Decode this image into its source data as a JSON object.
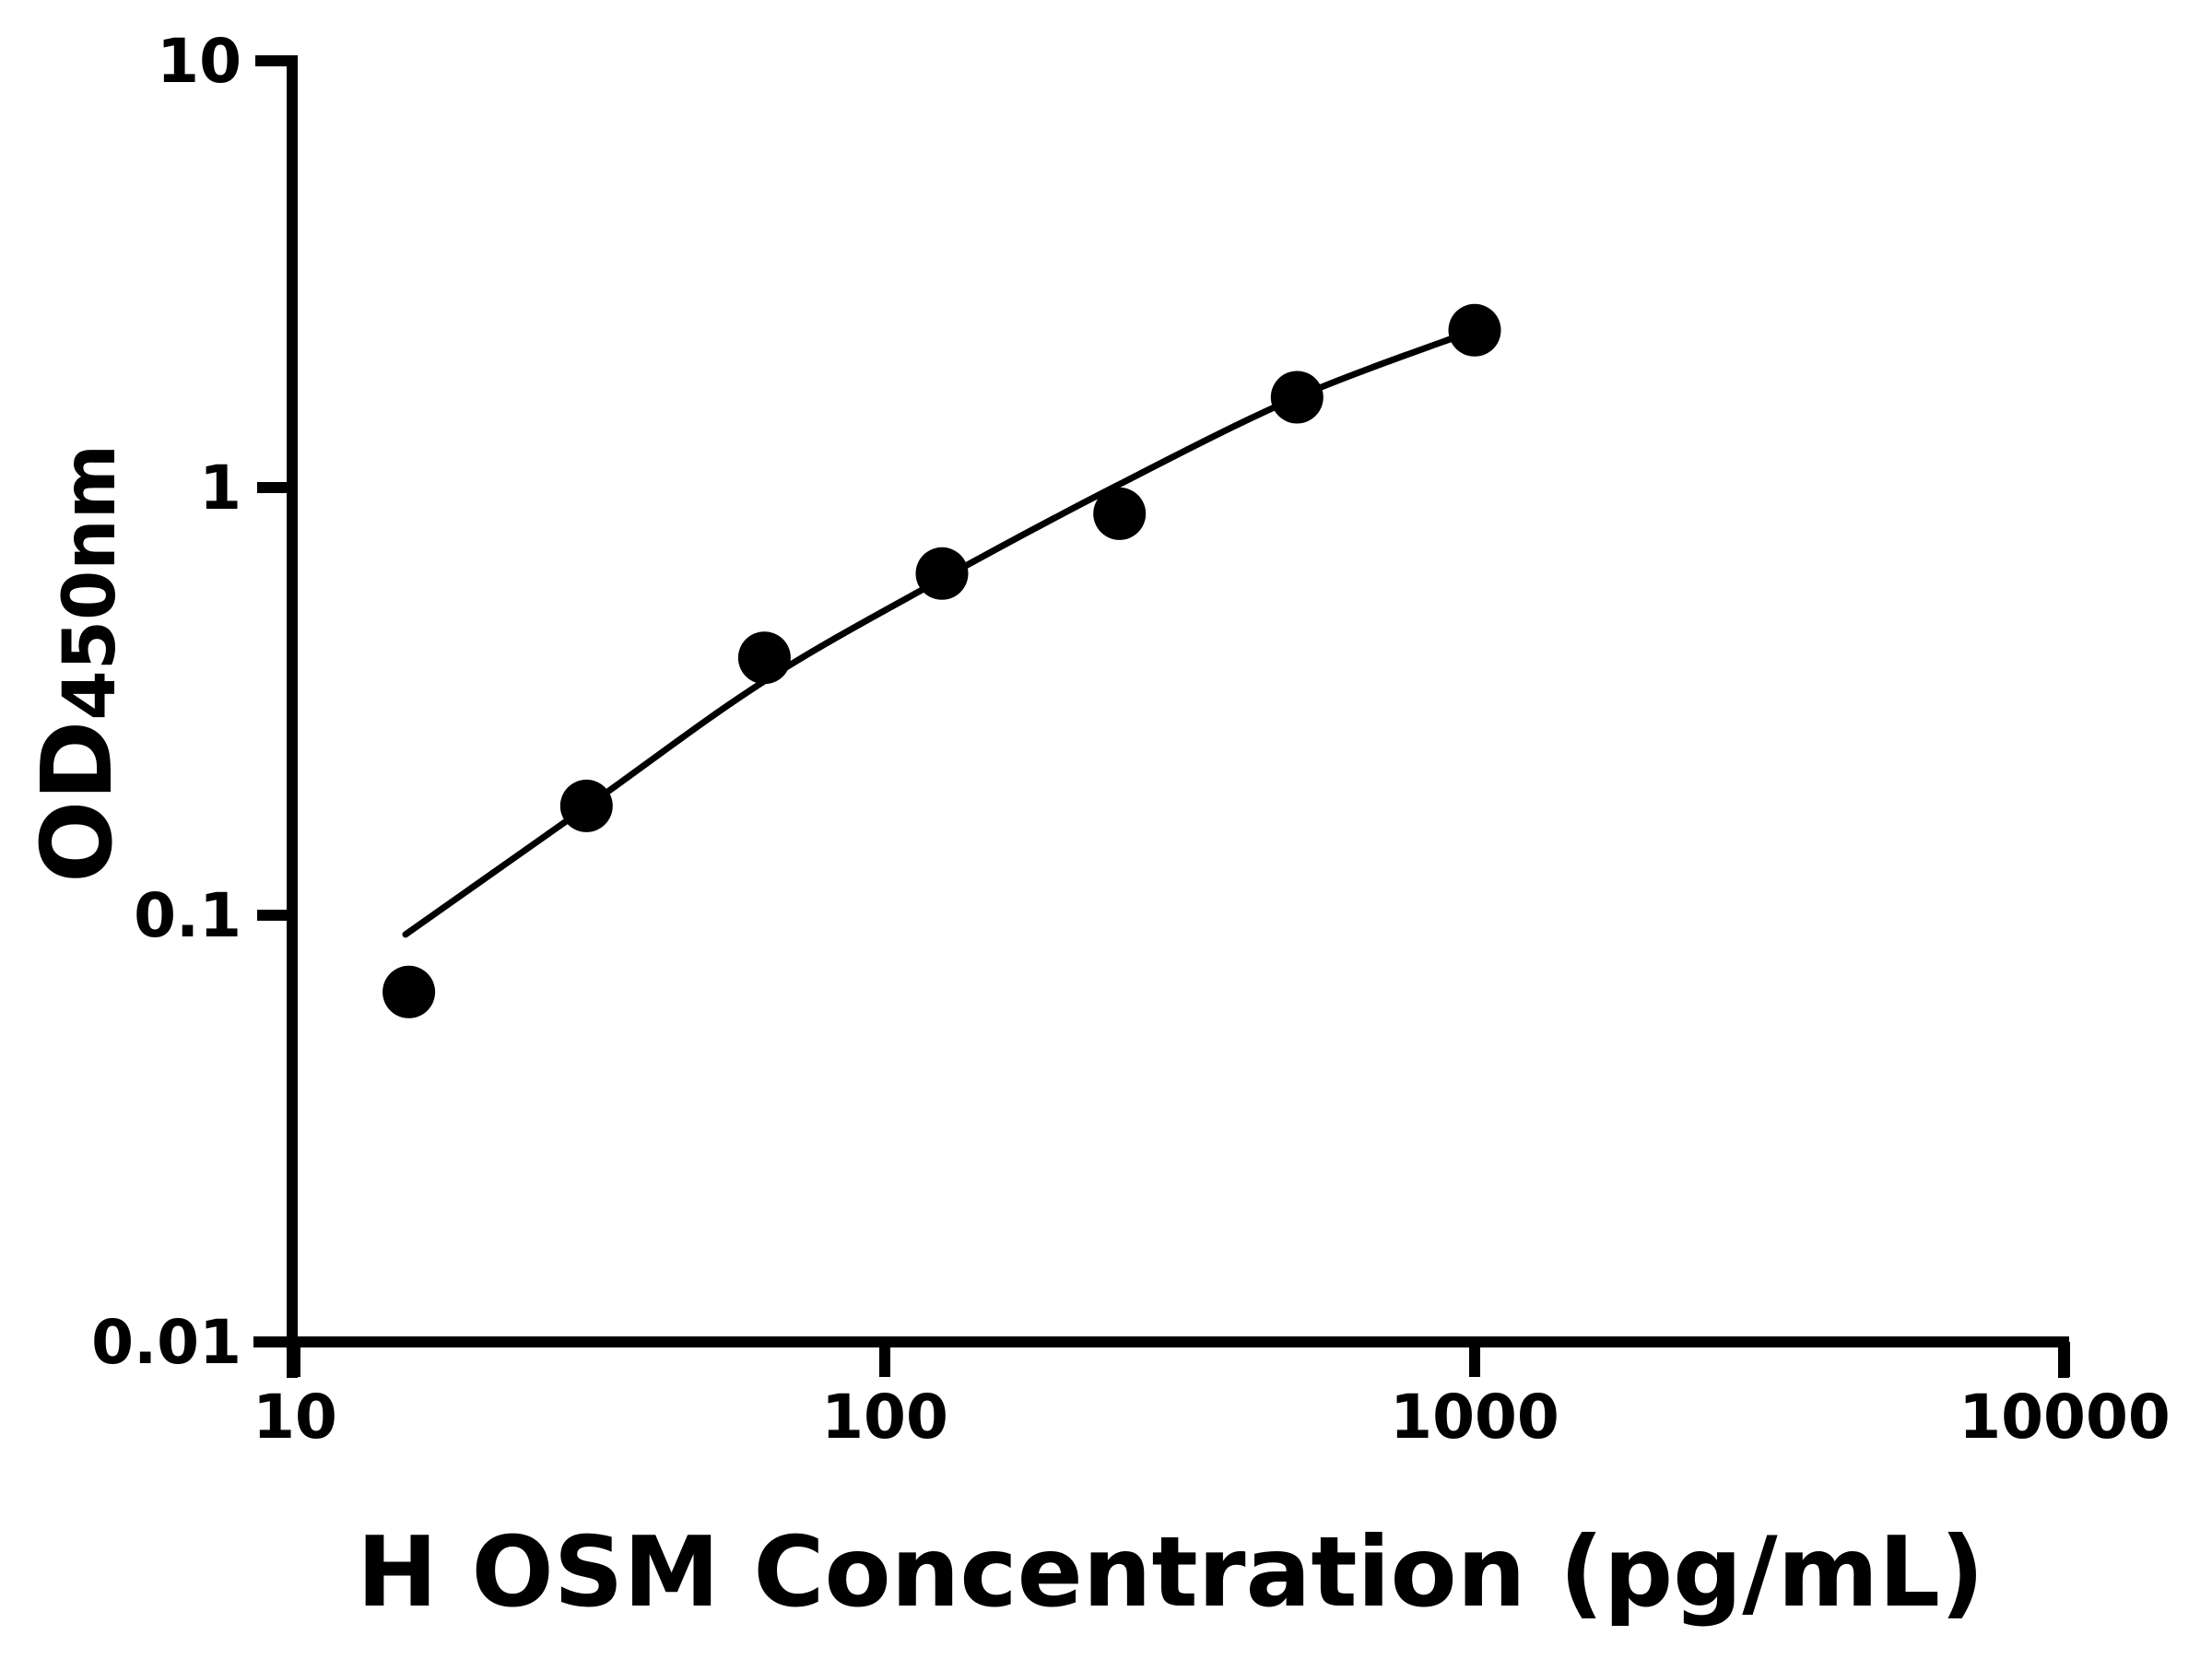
{
  "figure": {
    "background_color": "#ffffff",
    "ink_color": "#000000"
  },
  "chart_data": {
    "type": "scatter",
    "title": "",
    "xlabel": "H OSM Concentration (pg/mL)",
    "ylabel_main": "OD",
    "ylabel_sub": "450nm",
    "x_scale": "log10",
    "y_scale": "log10",
    "xlim": [
      10,
      10000
    ],
    "ylim": [
      0.01,
      10
    ],
    "grid": false,
    "legend": "none",
    "x_ticks": [
      {
        "value": 10,
        "label": "10"
      },
      {
        "value": 100,
        "label": "100"
      },
      {
        "value": 1000,
        "label": "1000"
      },
      {
        "value": 10000,
        "label": "10000"
      }
    ],
    "y_ticks": [
      {
        "value": 10,
        "label": "10"
      },
      {
        "value": 1,
        "label": "1"
      },
      {
        "value": 0.1,
        "label": "0.1"
      },
      {
        "value": 0.01,
        "label": "0.01"
      }
    ],
    "series": [
      {
        "name": "standard-points",
        "marker": "filled-circle",
        "color": "#000000",
        "points": [
          [
            15.6,
            0.066
          ],
          [
            31.2,
            0.18
          ],
          [
            62.5,
            0.4
          ],
          [
            125,
            0.63
          ],
          [
            250,
            0.87
          ],
          [
            500,
            1.63
          ],
          [
            1000,
            2.34
          ]
        ]
      }
    ],
    "fit_curve": {
      "name": "standard-curve-fit",
      "color": "#000000",
      "points": [
        [
          15.4,
          0.09
        ],
        [
          31.2,
          0.179
        ],
        [
          62.5,
          0.353
        ],
        [
          125,
          0.612
        ],
        [
          250,
          1.02
        ],
        [
          500,
          1.63
        ],
        [
          1000,
          2.34
        ]
      ]
    }
  }
}
